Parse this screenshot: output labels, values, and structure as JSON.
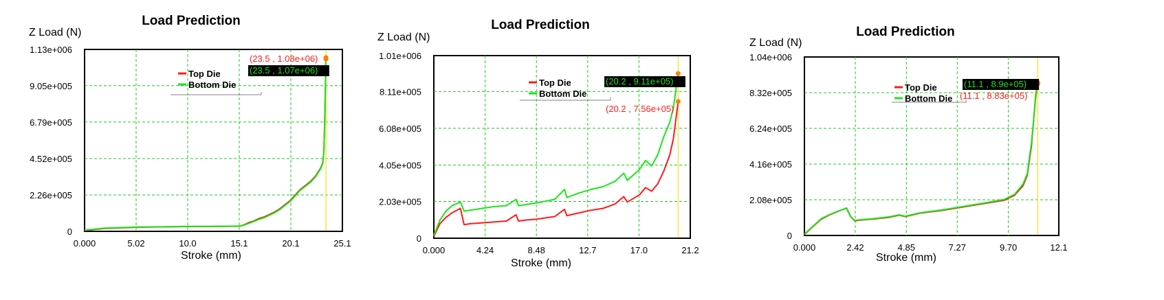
{
  "colors": {
    "top_die": "#ff1a1a",
    "bottom_die": "#19e619",
    "grid": "#19cc19",
    "cursor": "#f5e640",
    "marker": "#ff8000",
    "annotation_bg": "#000000"
  },
  "chart_data": [
    {
      "type": "line",
      "title": "Load Prediction",
      "ylabel": "Z Load (N)",
      "xlabel": "Stroke (mm)",
      "xlim": [
        0,
        25.1
      ],
      "ylim": [
        0,
        1130000
      ],
      "x_ticks": [
        "0.000",
        "5.02",
        "10.0",
        "15.1",
        "20.1",
        "25.1"
      ],
      "x_tick_values": [
        0,
        5.02,
        10.04,
        15.06,
        20.08,
        25.1
      ],
      "y_ticks": [
        "0",
        "2.26e+005",
        "4.52e+005",
        "6.79e+005",
        "9.05e+005",
        "1.13e+006"
      ],
      "y_tick_values": [
        0,
        226000,
        452000,
        679000,
        905000,
        1130000
      ],
      "grid": true,
      "legend": "top-center",
      "cursor_x": 23.5,
      "series": [
        {
          "name": "Top Die",
          "color": "#ff1a1a",
          "x": [
            0,
            2,
            5,
            8,
            10,
            12,
            14,
            15.1,
            15.5,
            16,
            16.5,
            17,
            17.5,
            18,
            18.5,
            19,
            19.5,
            20,
            20.5,
            21,
            21.5,
            22,
            22.5,
            23,
            23.2,
            23.3,
            23.4,
            23.5
          ],
          "y": [
            5000,
            18000,
            25000,
            28000,
            30000,
            30000,
            31000,
            32000,
            40000,
            55000,
            65000,
            80000,
            90000,
            105000,
            120000,
            140000,
            165000,
            190000,
            225000,
            260000,
            285000,
            310000,
            345000,
            395000,
            430000,
            500000,
            750000,
            1080000
          ]
        },
        {
          "name": "Bottom Die",
          "color": "#19e619",
          "x": [
            0,
            2,
            5,
            8,
            10,
            12,
            14,
            15.1,
            15.5,
            16,
            16.5,
            17,
            17.5,
            18,
            18.5,
            19,
            19.5,
            20,
            20.5,
            21,
            21.5,
            22,
            22.5,
            23,
            23.2,
            23.3,
            23.4,
            23.5
          ],
          "y": [
            8000,
            20000,
            27000,
            29000,
            31000,
            31000,
            32000,
            33000,
            38000,
            50000,
            62000,
            75000,
            85000,
            100000,
            115000,
            135000,
            160000,
            185000,
            220000,
            255000,
            280000,
            305000,
            340000,
            390000,
            425000,
            495000,
            740000,
            1070000
          ]
        }
      ],
      "annotations": [
        {
          "text": "(23.5 , 1.08e+06)",
          "series": "Top Die",
          "x": 23.5,
          "y": 1080000
        },
        {
          "text": "(23.5 , 1.07e+06)",
          "series": "Bottom Die",
          "x": 23.5,
          "y": 1070000
        }
      ]
    },
    {
      "type": "line",
      "title": "Load Prediction",
      "ylabel": "Z Load (N)",
      "xlabel": "Stroke (mm)",
      "xlim": [
        0,
        21.2
      ],
      "ylim": [
        0,
        1010000
      ],
      "x_ticks": [
        "0.000",
        "4.24",
        "8.48",
        "12.7",
        "17.0",
        "21.2"
      ],
      "x_tick_values": [
        0,
        4.24,
        8.48,
        12.72,
        16.96,
        21.2
      ],
      "y_ticks": [
        "0",
        "2.03e+005",
        "4.05e+005",
        "6.08e+005",
        "8.11e+005",
        "1.01e+006"
      ],
      "y_tick_values": [
        0,
        203000,
        405000,
        608000,
        811000,
        1010000
      ],
      "grid": true,
      "legend": "top-center",
      "cursor_x": 20.2,
      "series": [
        {
          "name": "Top Die",
          "color": "#ff1a1a",
          "x": [
            0,
            0.5,
            1,
            1.5,
            2.2,
            2.5,
            3,
            4,
            5,
            6,
            6.8,
            7,
            7.5,
            8.5,
            10,
            10.8,
            11,
            12,
            13,
            14,
            15,
            15.7,
            16,
            17,
            17.5,
            18,
            18.5,
            19,
            19.5,
            19.8,
            20.2
          ],
          "y": [
            10000,
            80000,
            115000,
            140000,
            165000,
            75000,
            80000,
            85000,
            90000,
            95000,
            130000,
            95000,
            100000,
            105000,
            120000,
            160000,
            125000,
            140000,
            155000,
            165000,
            190000,
            230000,
            200000,
            240000,
            280000,
            260000,
            300000,
            370000,
            460000,
            550000,
            756000
          ]
        },
        {
          "name": "Bottom Die",
          "color": "#19e619",
          "x": [
            0,
            0.5,
            1,
            1.5,
            2.2,
            2.5,
            3,
            4,
            5,
            6,
            6.8,
            7,
            7.5,
            8.5,
            10,
            10.8,
            11,
            12,
            13,
            14,
            15,
            15.7,
            16,
            17,
            17.5,
            18,
            18.5,
            19,
            19.5,
            19.8,
            20.2
          ],
          "y": [
            15000,
            100000,
            150000,
            180000,
            200000,
            150000,
            155000,
            165000,
            175000,
            180000,
            215000,
            180000,
            185000,
            195000,
            215000,
            270000,
            225000,
            250000,
            270000,
            285000,
            315000,
            360000,
            320000,
            380000,
            430000,
            400000,
            460000,
            560000,
            640000,
            720000,
            911000
          ]
        }
      ],
      "annotations": [
        {
          "text": "(20.2 , 9.11e+05)",
          "series": "Bottom Die",
          "x": 20.2,
          "y": 911000
        },
        {
          "text": "(20.2 , 7.56e+05)",
          "series": "Top Die",
          "x": 20.2,
          "y": 756000
        }
      ]
    },
    {
      "type": "line",
      "title": "Load Prediction",
      "ylabel": "Z Load (N)",
      "xlabel": "Stroke (mm)",
      "xlim": [
        0,
        12.1
      ],
      "ylim": [
        0,
        1040000
      ],
      "x_ticks": [
        "0.000",
        "2.42",
        "4.85",
        "7.27",
        "9.70",
        "12.1"
      ],
      "x_tick_values": [
        0,
        2.42,
        4.85,
        7.27,
        9.7,
        12.1
      ],
      "y_ticks": [
        "0",
        "2.08e+005",
        "4.16e+005",
        "6.24e+005",
        "8.32e+005",
        "1.04e+006"
      ],
      "y_tick_values": [
        0,
        208000,
        416000,
        624000,
        832000,
        1040000
      ],
      "grid": true,
      "legend": "top-center",
      "cursor_x": 11.1,
      "series": [
        {
          "name": "Top Die",
          "color": "#ff1a1a",
          "x": [
            0,
            0.3,
            0.8,
            1.2,
            1.6,
            2.0,
            2.2,
            2.4,
            2.7,
            3.2,
            4,
            4.5,
            4.8,
            5.5,
            6.5,
            7.5,
            8.5,
            9.5,
            10,
            10.4,
            10.6,
            10.8,
            11.0,
            11.1
          ],
          "y": [
            5000,
            40000,
            95000,
            120000,
            140000,
            160000,
            110000,
            85000,
            90000,
            95000,
            105000,
            118000,
            110000,
            130000,
            145000,
            165000,
            185000,
            205000,
            235000,
            290000,
            350000,
            520000,
            820000,
            883000
          ]
        },
        {
          "name": "Bottom Die",
          "color": "#19e619",
          "x": [
            0,
            0.3,
            0.8,
            1.2,
            1.6,
            2.0,
            2.2,
            2.4,
            2.7,
            3.2,
            4,
            4.5,
            4.8,
            5.5,
            6.5,
            7.5,
            8.5,
            9.5,
            10,
            10.4,
            10.6,
            10.8,
            11.0,
            11.1
          ],
          "y": [
            8000,
            42000,
            98000,
            122000,
            142000,
            158000,
            108000,
            88000,
            92000,
            97000,
            108000,
            120000,
            112000,
            132000,
            148000,
            168000,
            188000,
            210000,
            240000,
            300000,
            360000,
            540000,
            800000,
            890000
          ]
        }
      ],
      "annotations": [
        {
          "text": "(11.1 , 8.9e+05)",
          "series": "Bottom Die",
          "x": 11.1,
          "y": 890000
        },
        {
          "text": "(11.1 , 8.83e+05)",
          "series": "Top Die",
          "x": 11.1,
          "y": 883000
        }
      ]
    }
  ]
}
